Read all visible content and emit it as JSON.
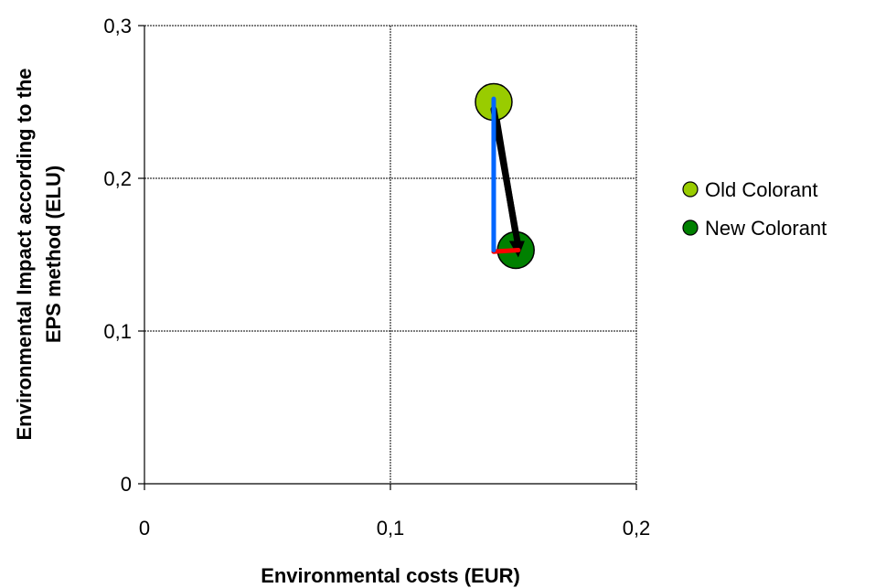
{
  "chart_data": {
    "type": "scatter",
    "xlabel": "Environmental costs (EUR)",
    "ylabel": "Environmental Impact according to the EPS method (ELU)",
    "xlim": [
      0,
      0.2
    ],
    "ylim": [
      0,
      0.3
    ],
    "xticks": [
      0,
      0.1,
      0.2
    ],
    "yticks": [
      0,
      0.1,
      0.2,
      0.3
    ],
    "xtick_labels": [
      "0",
      "0,1",
      "0,2"
    ],
    "ytick_labels": [
      "0",
      "0,1",
      "0,2",
      "0,3"
    ],
    "grid": true,
    "legend_position": "right",
    "series": [
      {
        "name": "Old Colorant",
        "x": [
          0.131
        ],
        "y": [
          0.25
        ],
        "color": "#99CC00"
      },
      {
        "name": "New Colorant",
        "x": [
          0.151
        ],
        "y": [
          0.153
        ],
        "color": "#008000"
      }
    ],
    "arrows": [
      {
        "from": [
          0.142,
          0.252
        ],
        "to": [
          0.142,
          0.153
        ],
        "color": "#0066FF"
      },
      {
        "from": [
          0.142,
          0.152
        ],
        "to": [
          0.152,
          0.153
        ],
        "color": "#FF0000"
      },
      {
        "from": [
          0.142,
          0.25
        ],
        "to": [
          0.152,
          0.153
        ],
        "color": "#000000"
      }
    ]
  }
}
